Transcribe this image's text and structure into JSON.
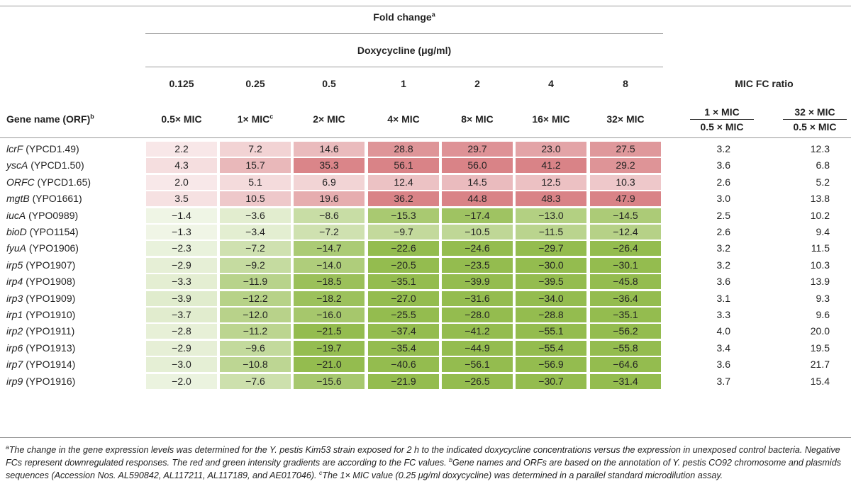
{
  "header": {
    "fold_change": "Fold change",
    "fold_change_sup": "a",
    "doxycycline": "Doxycycline (μg/ml)",
    "concentrations": [
      "0.125",
      "0.25",
      "0.5",
      "1",
      "2",
      "4",
      "8"
    ],
    "mic_labels": [
      "0.5× MIC",
      "1× MIC",
      "2× MIC",
      "4× MIC",
      "8× MIC",
      "16× MIC",
      "32× MIC"
    ],
    "mic_label_sup": "c",
    "gene_col": "Gene name (ORF)",
    "gene_col_sup": "b",
    "mic_fc_ratio": "MIC FC ratio",
    "ratio1_num": "1 × MIC",
    "ratio1_den": "0.5 × MIC",
    "ratio2_num": "32 × MIC",
    "ratio2_den": "0.5 × MIC"
  },
  "rows": [
    {
      "gene": "lcrF",
      "orf": "(YPCD1.49)",
      "values": [
        "2.2",
        "7.2",
        "14.6",
        "28.8",
        "29.7",
        "23.0",
        "27.5"
      ],
      "r1": "3.2",
      "r2": "12.3"
    },
    {
      "gene": "yscA",
      "orf": "(YPCD1.50)",
      "values": [
        "4.3",
        "15.7",
        "35.3",
        "56.1",
        "56.0",
        "41.2",
        "29.2"
      ],
      "r1": "3.6",
      "r2": "6.8"
    },
    {
      "gene": "ORFC",
      "orf": "(YPCD1.65)",
      "values": [
        "2.0",
        "5.1",
        "6.9",
        "12.4",
        "14.5",
        "12.5",
        "10.3"
      ],
      "r1": "2.6",
      "r2": "5.2"
    },
    {
      "gene": "mgtB",
      "orf": "(YPO1661)",
      "values": [
        "3.5",
        "10.5",
        "19.6",
        "36.2",
        "44.8",
        "48.3",
        "47.9"
      ],
      "r1": "3.0",
      "r2": "13.8"
    },
    {
      "gene": "iucA",
      "orf": "(YPO0989)",
      "values": [
        "−1.4",
        "−3.6",
        "−8.6",
        "−15.3",
        "−17.4",
        "−13.0",
        "−14.5"
      ],
      "r1": "2.5",
      "r2": "10.2"
    },
    {
      "gene": "bioD",
      "orf": "(YPO1154)",
      "values": [
        "−1.3",
        "−3.4",
        "−7.2",
        "−9.7",
        "−10.5",
        "−11.5",
        "−12.4"
      ],
      "r1": "2.6",
      "r2": "9.4"
    },
    {
      "gene": "fyuA",
      "orf": "(YPO1906)",
      "values": [
        "−2.3",
        "−7.2",
        "−14.7",
        "−22.6",
        "−24.6",
        "−29.7",
        "−26.4"
      ],
      "r1": "3.2",
      "r2": "11.5"
    },
    {
      "gene": "irp5",
      "orf": "(YPO1907)",
      "values": [
        "−2.9",
        "−9.2",
        "−14.0",
        "−20.5",
        "−23.5",
        "−30.0",
        "−30.1"
      ],
      "r1": "3.2",
      "r2": "10.3"
    },
    {
      "gene": "irp4",
      "orf": "(YPO1908)",
      "values": [
        "−3.3",
        "−11.9",
        "−18.5",
        "−35.1",
        "−39.9",
        "−39.5",
        "−45.8"
      ],
      "r1": "3.6",
      "r2": "13.9"
    },
    {
      "gene": "irp3",
      "orf": "(YPO1909)",
      "values": [
        "−3.9",
        "−12.2",
        "−18.2",
        "−27.0",
        "−31.6",
        "−34.0",
        "−36.4"
      ],
      "r1": "3.1",
      "r2": "9.3"
    },
    {
      "gene": "irp1",
      "orf": "(YPO1910)",
      "values": [
        "−3.7",
        "−12.0",
        "−16.0",
        "−25.5",
        "−28.0",
        "−28.8",
        "−35.1"
      ],
      "r1": "3.3",
      "r2": "9.6"
    },
    {
      "gene": "irp2",
      "orf": "(YPO1911)",
      "values": [
        "−2.8",
        "−11.2",
        "−21.5",
        "−37.4",
        "−41.2",
        "−55.1",
        "−56.2"
      ],
      "r1": "4.0",
      "r2": "20.0"
    },
    {
      "gene": "irp6",
      "orf": "(YPO1913)",
      "values": [
        "−2.9",
        "−9.6",
        "−19.7",
        "−35.4",
        "−44.9",
        "−55.4",
        "−55.8"
      ],
      "r1": "3.4",
      "r2": "19.5"
    },
    {
      "gene": "irp7",
      "orf": "(YPO1914)",
      "values": [
        "−3.0",
        "−10.8",
        "−21.0",
        "−40.6",
        "−56.1",
        "−56.9",
        "−64.6"
      ],
      "r1": "3.6",
      "r2": "21.7"
    },
    {
      "gene": "irp9",
      "orf": "(YPO1916)",
      "values": [
        "−2.0",
        "−7.6",
        "−15.6",
        "−21.9",
        "−26.5",
        "−30.7",
        "−31.4"
      ],
      "r1": "3.7",
      "r2": "15.4"
    }
  ],
  "footnotes": {
    "a_marker": "a",
    "a_text": "The change in the gene expression levels was determined for the Y. pestis Kim53 strain exposed for 2 h to the indicated doxycycline concentrations versus the expression in unexposed control bacteria. Negative FCs represent downregulated responses. The red and green intensity gradients are according to the FC values.",
    "b_marker": "b",
    "b_text": "Gene names and ORFs are based on the annotation of Y. pestis CO92 chromosome and plasmids sequences (Accession Nos. AL590842, AL117211, AL117189, and AE017046).",
    "c_marker": "c",
    "c_text": "The 1× MIC value (0.25 μg/ml doxycycline) was determined in a parallel standard microdilution assay."
  },
  "colors": {
    "up_max": "#d98387",
    "down_max": "#94bc4f",
    "rule": "#9a9a9a"
  }
}
